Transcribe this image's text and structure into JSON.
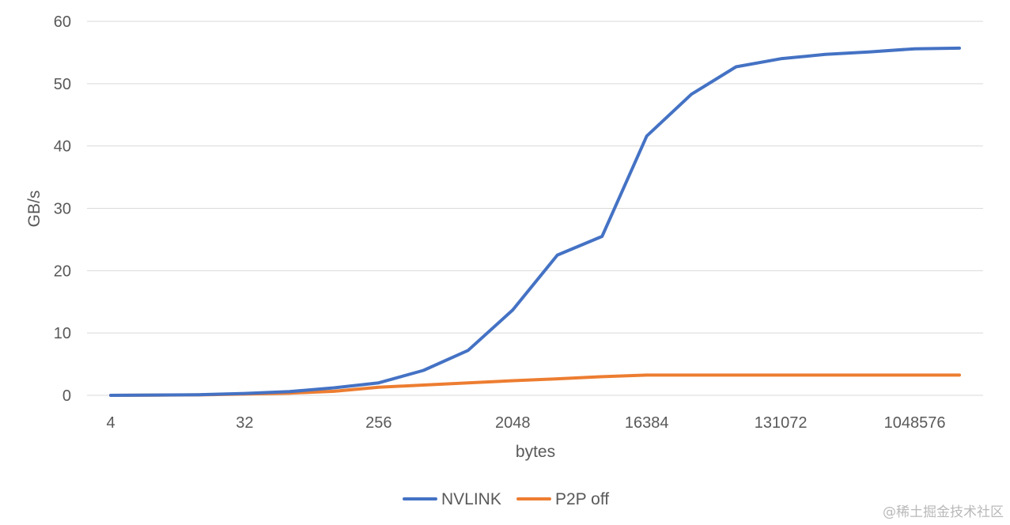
{
  "chart_data": {
    "type": "line",
    "xlabel": "bytes",
    "ylabel": "GB/s",
    "ylim": [
      0,
      60
    ],
    "y_ticks": [
      0,
      10,
      20,
      30,
      40,
      50,
      60
    ],
    "x": [
      4,
      8,
      16,
      32,
      64,
      128,
      256,
      512,
      1024,
      2048,
      4096,
      8192,
      16384,
      32768,
      65536,
      131072,
      262144,
      524288,
      1048576,
      2097152
    ],
    "x_tick_labels": [
      "4",
      "32",
      "256",
      "2048",
      "16384",
      "131072",
      "1048576"
    ],
    "grid": true,
    "legend_position": "bottom",
    "series": [
      {
        "name": "NVLINK",
        "color": "#4472C4",
        "values": [
          0.0,
          0.05,
          0.1,
          0.3,
          0.6,
          1.2,
          2.0,
          4.0,
          7.2,
          13.7,
          22.5,
          25.5,
          41.6,
          48.3,
          52.7,
          54.0,
          54.7,
          55.1,
          55.6,
          55.7
        ]
      },
      {
        "name": "P2P off",
        "color": "#ED7D31",
        "values": [
          0.0,
          0.03,
          0.07,
          0.2,
          0.35,
          0.65,
          1.3,
          1.65,
          2.0,
          2.35,
          2.65,
          3.0,
          3.25,
          3.25,
          3.25,
          3.25,
          3.25,
          3.25,
          3.25,
          3.25
        ]
      }
    ]
  },
  "watermark": "@稀土掘金技术社区"
}
